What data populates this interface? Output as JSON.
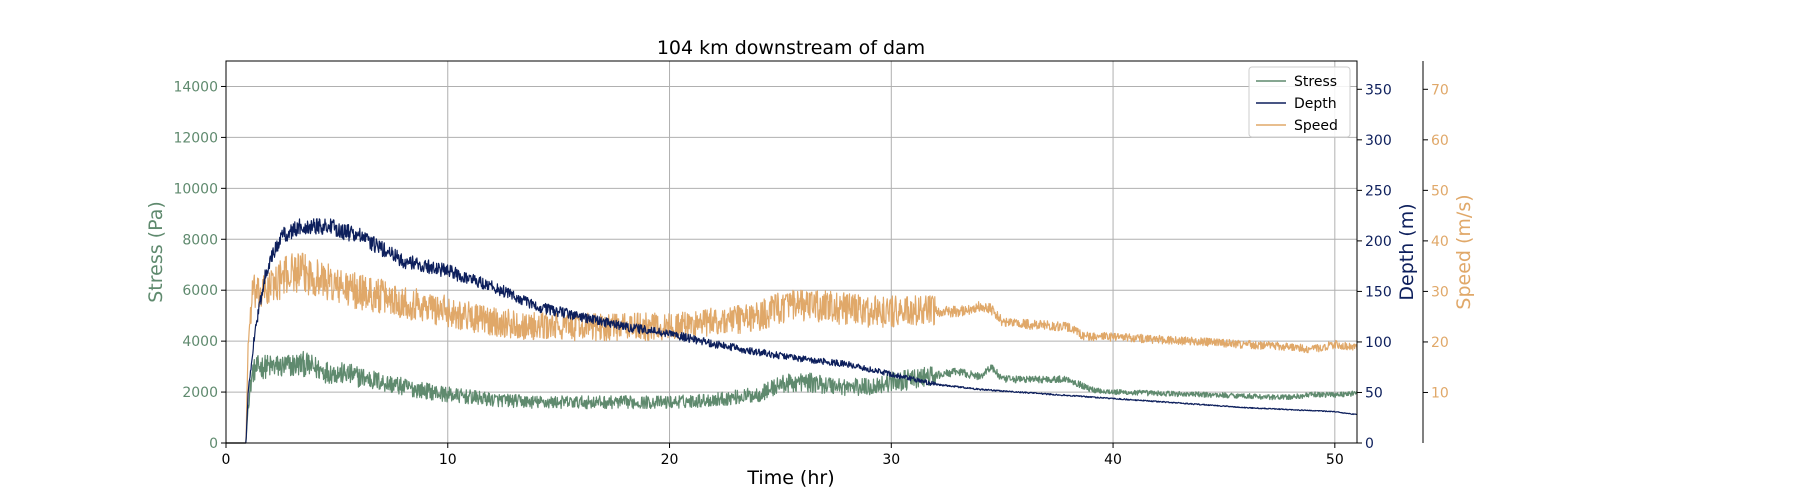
{
  "chart_data": {
    "type": "line",
    "title": "104 km downstream of dam",
    "xlabel": "Time (hr)",
    "xlim": [
      0,
      51
    ],
    "xticks": [
      0,
      10,
      20,
      30,
      40,
      50
    ],
    "grid": true,
    "legend": {
      "placement": "top-right",
      "entries": [
        "Stress",
        "Depth",
        "Speed"
      ]
    },
    "axes": {
      "stress": {
        "label": "Stress (Pa)",
        "ylim": [
          0,
          15000
        ],
        "ticks": [
          0,
          2000,
          4000,
          6000,
          8000,
          10000,
          12000,
          14000
        ],
        "color": "#5f8a6e",
        "side": "left"
      },
      "depth": {
        "label": "Depth (m)",
        "ylim": [
          0,
          378
        ],
        "ticks": [
          0,
          50,
          100,
          150,
          200,
          250,
          300,
          350
        ],
        "color": "#0d1f5c",
        "side": "right"
      },
      "speed": {
        "label": "Speed (m/s)",
        "ylim": [
          0,
          75.6
        ],
        "ticks": [
          10,
          20,
          30,
          40,
          50,
          60,
          70
        ],
        "color": "#e0a869",
        "side": "right-outer"
      }
    },
    "series": [
      {
        "name": "Stress",
        "axis": "stress",
        "color": "#5f8a6e",
        "noise_band": 0.16,
        "x": [
          0,
          0.9,
          1.0,
          1.2,
          1.5,
          2.5,
          3.5,
          4.5,
          5.5,
          6.5,
          8,
          10,
          12,
          14,
          16,
          18,
          20,
          22,
          24,
          25,
          26,
          27,
          28,
          29,
          30,
          31,
          33,
          34,
          34.5,
          35,
          36,
          38,
          39,
          40,
          42,
          44,
          46,
          47,
          48,
          49,
          50,
          51
        ],
        "y": [
          0,
          0,
          1500,
          2800,
          3000,
          3000,
          3100,
          2800,
          2700,
          2500,
          2200,
          1900,
          1700,
          1600,
          1600,
          1600,
          1600,
          1700,
          1900,
          2300,
          2400,
          2300,
          2200,
          2200,
          2400,
          2500,
          2800,
          2600,
          3000,
          2500,
          2500,
          2500,
          2100,
          2000,
          1950,
          1900,
          1850,
          1800,
          1800,
          1900,
          1900,
          1950
        ]
      },
      {
        "name": "Depth",
        "axis": "depth",
        "color": "#0d1f5c",
        "noise_band": 0.04,
        "x": [
          0,
          0.9,
          1.0,
          1.3,
          1.8,
          2.5,
          3.5,
          4.5,
          6,
          8,
          10,
          12,
          14,
          16,
          18,
          20,
          22,
          24,
          26,
          28,
          30,
          32,
          34,
          36,
          38,
          40,
          42,
          44,
          46,
          48,
          50,
          51
        ],
        "y": [
          0,
          0,
          50,
          110,
          170,
          205,
          215,
          215,
          205,
          180,
          170,
          155,
          135,
          125,
          115,
          108,
          98,
          90,
          83,
          78,
          68,
          58,
          53,
          50,
          47,
          44,
          41,
          38,
          35,
          33,
          31,
          28
        ]
      },
      {
        "name": "Speed",
        "axis": "speed",
        "color": "#e0a869",
        "noise_band": 0.12,
        "x": [
          0,
          0.9,
          1.0,
          1.2,
          1.5,
          2.0,
          3.0,
          4.0,
          5.0,
          6.0,
          8.0,
          10,
          12,
          14,
          16,
          18,
          20,
          22,
          24,
          25,
          26,
          27,
          28,
          29,
          30,
          32,
          33,
          34,
          34.5,
          35,
          36,
          38,
          38.5,
          39,
          40,
          42,
          44,
          46,
          48,
          49,
          50,
          51
        ],
        "y": [
          0,
          0,
          20,
          30,
          29,
          31,
          34,
          33,
          31,
          30,
          28,
          26,
          24,
          23,
          23,
          23,
          23,
          24,
          25,
          27,
          27,
          27,
          26.5,
          26,
          26,
          26,
          26,
          27,
          26.5,
          24,
          23.5,
          23,
          21.5,
          21,
          21,
          20.5,
          20,
          19.5,
          19,
          18.5,
          19.5,
          19
        ]
      }
    ]
  }
}
